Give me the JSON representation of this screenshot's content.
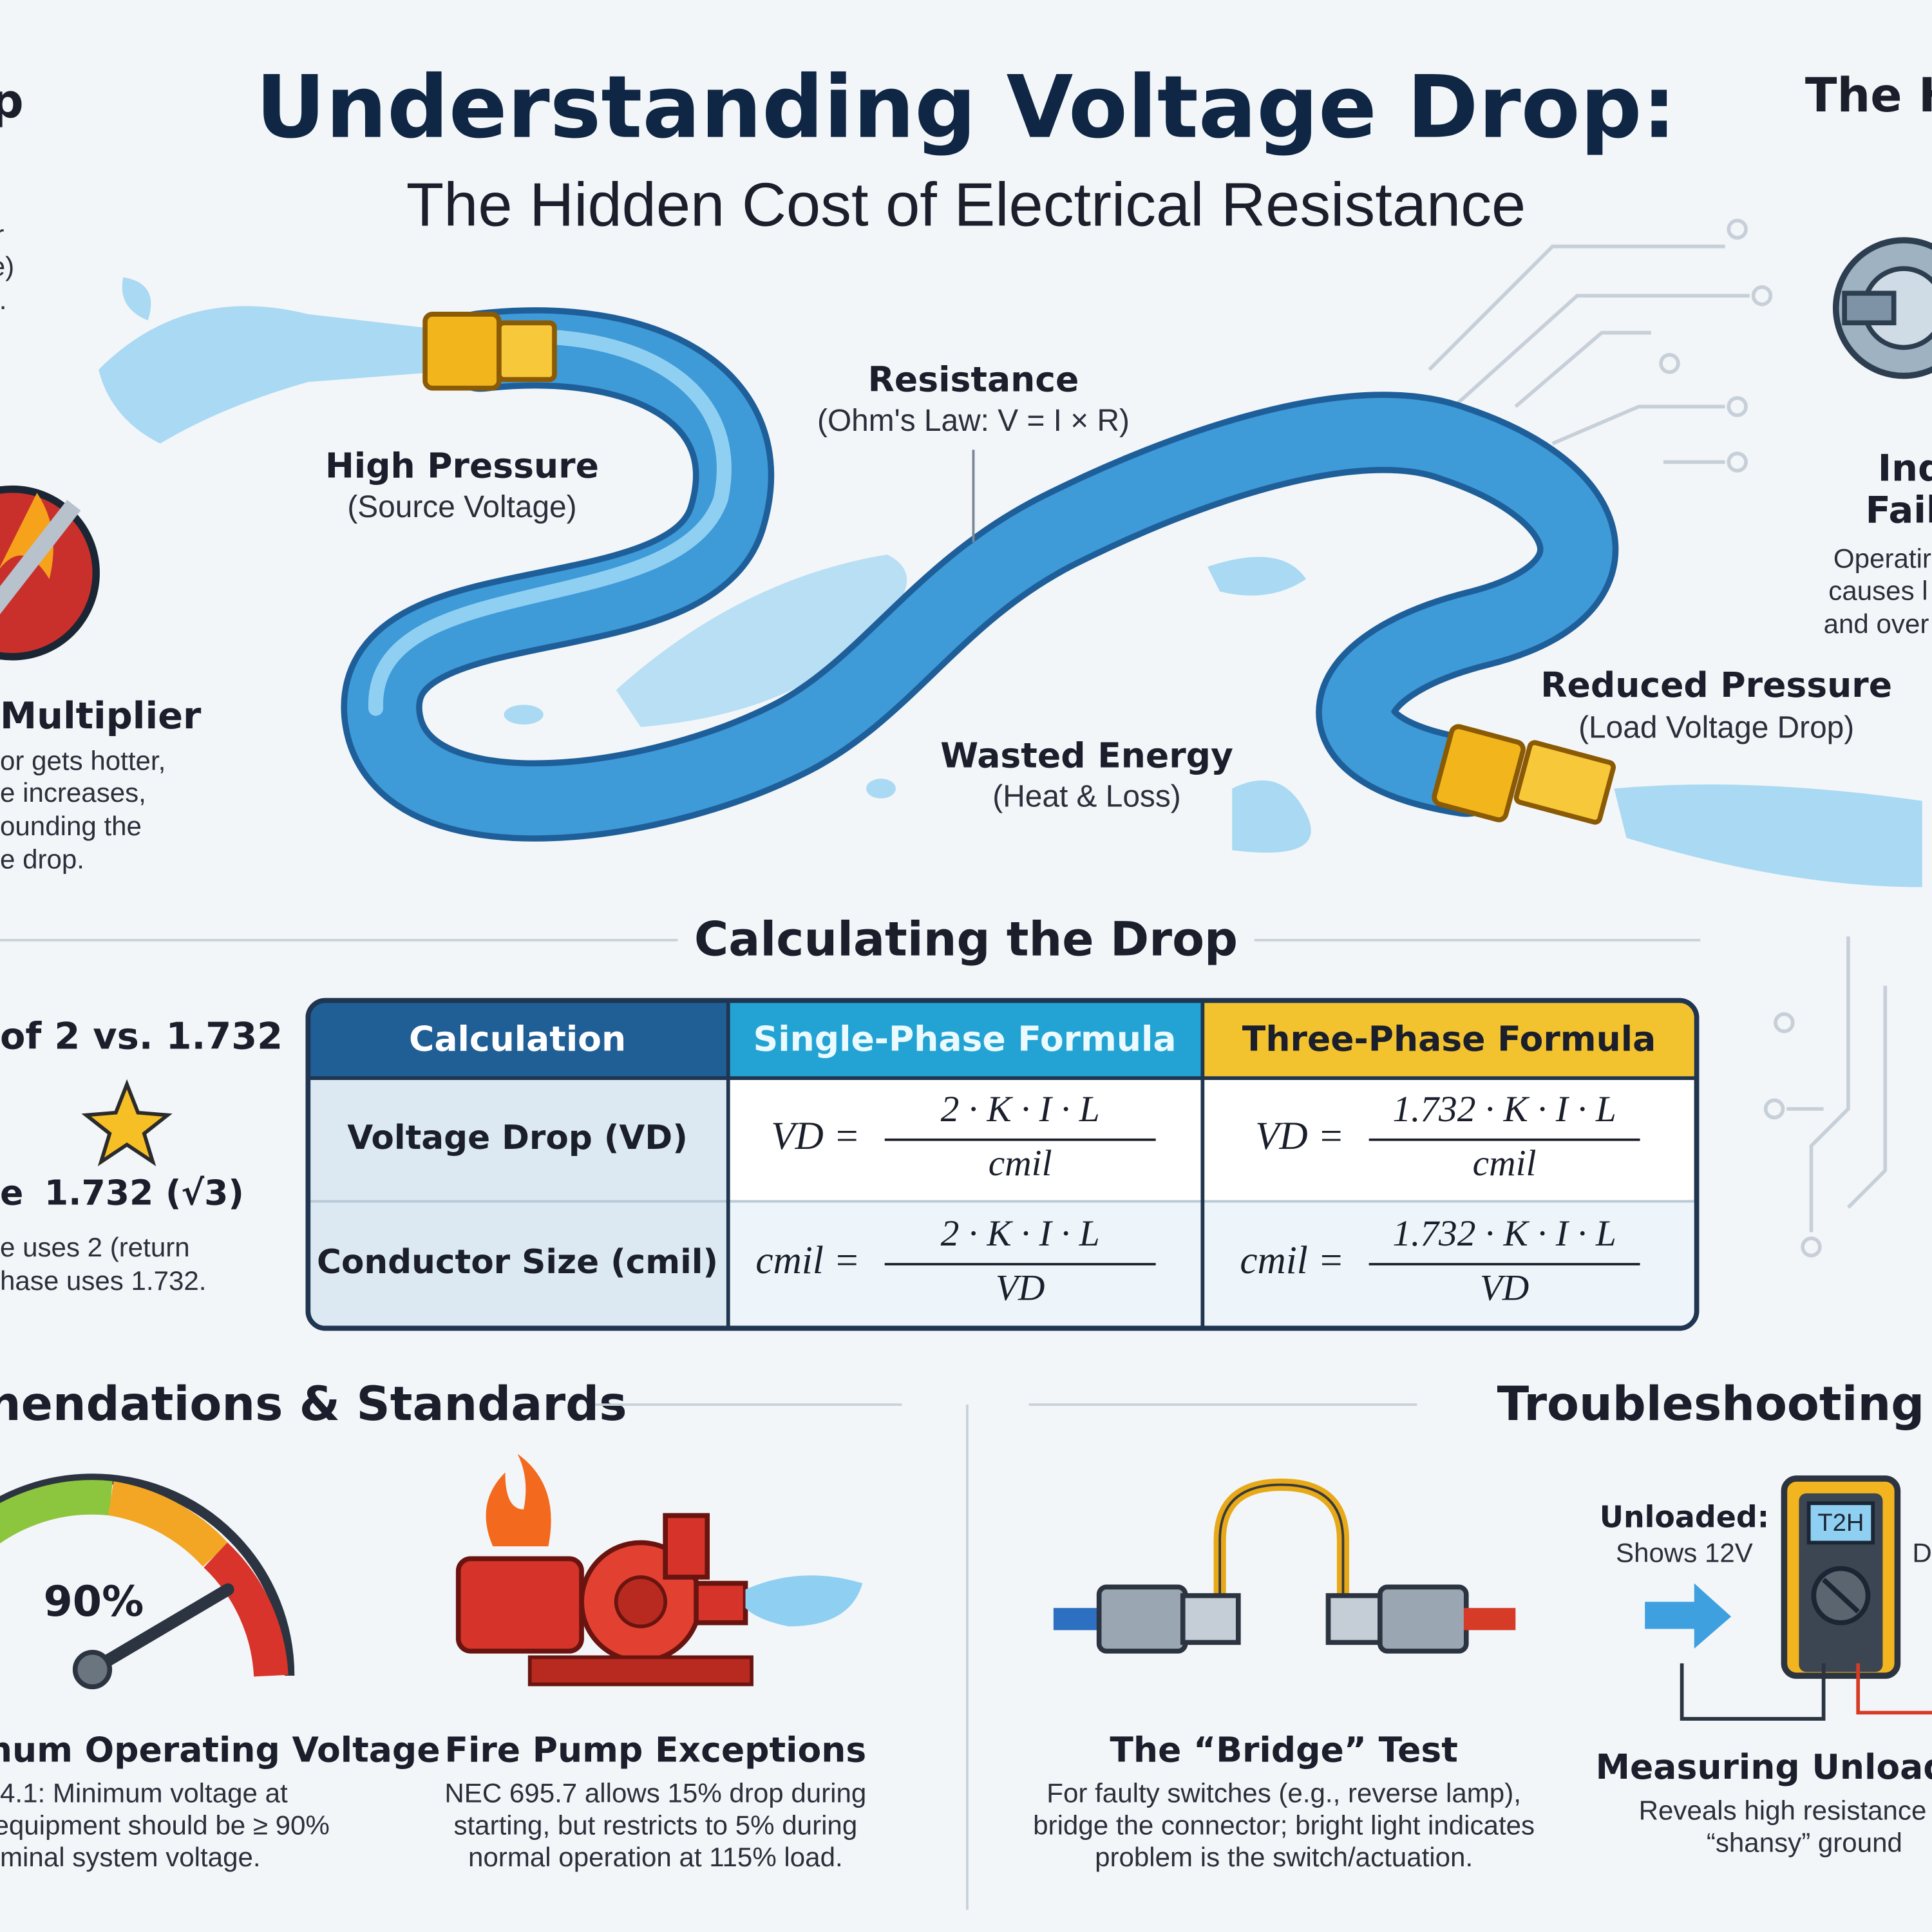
{
  "header": {
    "title": "Understanding Voltage Drop:",
    "subtitle": "The Hidden Cost of Electrical Resistance"
  },
  "left_top": {
    "heading": "p",
    "lines": [
      "r",
      "e)",
      ")."
    ]
  },
  "right_top": {
    "heading": "The H",
    "title_lines": [
      "Ind",
      "Failu"
    ],
    "lines": [
      "Operatir",
      "causes l",
      "and over"
    ]
  },
  "left_mid": {
    "heading": "Multiplier",
    "lines": [
      "or gets hotter,",
      "e increases,",
      "ounding the",
      "e drop."
    ]
  },
  "hose": {
    "high": {
      "label": "High Pressure",
      "sub": "(Source Voltage)"
    },
    "resistance": {
      "label": "Resistance",
      "sub": "(Ohm's Law: V = I × R)"
    },
    "wasted": {
      "label": "Wasted Energy",
      "sub": "(Heat & Loss)"
    },
    "reduced": {
      "label": "Reduced Pressure",
      "sub": "(Load Voltage Drop)"
    }
  },
  "calc": {
    "title": "Calculating the Drop",
    "side": {
      "heading": "of 2 vs. 1.732",
      "prefix": "e",
      "value": "1.732 (√3)",
      "lines": [
        "e uses 2 (return",
        "hase uses 1.732."
      ]
    },
    "table": {
      "headers": [
        "Calculation",
        "Single-Phase Formula",
        "Three-Phase Formula"
      ],
      "rows": [
        {
          "label": "Voltage Drop (VD)",
          "single": {
            "lhs": "VD =",
            "num": "2 · K · I · L",
            "den": "cmil"
          },
          "three": {
            "lhs": "VD =",
            "num": "1.732 · K · I · L",
            "den": "cmil"
          }
        },
        {
          "label": "Conductor Size (cmil)",
          "single": {
            "lhs": "cmil =",
            "num": "2 · K · I · L",
            "den": "VD"
          },
          "three": {
            "lhs": "cmil =",
            "num": "1.732 · K · I · L",
            "den": "VD"
          }
        }
      ]
    }
  },
  "standards": {
    "title": "nendations & Standards",
    "gauge": {
      "value": "90%",
      "heading": "num Operating Voltage",
      "lines": [
        "4.1: Minimum voltage at",
        "equipment should be ≥ 90%",
        "minal system voltage."
      ]
    },
    "fire": {
      "heading": "Fire Pump Exceptions",
      "lines": [
        "NEC 695.7 allows 15% drop during",
        "starting, but restricts to 5% during",
        "normal operation at 115% load."
      ]
    }
  },
  "troubleshooting": {
    "title": "Troubleshooting in",
    "bridge": {
      "heading": "The “Bridge” Test",
      "lines": [
        "For faulty switches (e.g., reverse lamp),",
        "bridge the connector; bright light indicates",
        "problem is the switch/actuation."
      ]
    },
    "meter": {
      "unloaded": "Unloaded:",
      "shows": "Shows 12V",
      "cut": "D",
      "display": "T2H",
      "heading": "Measuring Unloaded",
      "lines": [
        "Reveals high resistance",
        "“shansy” ground"
      ]
    }
  }
}
